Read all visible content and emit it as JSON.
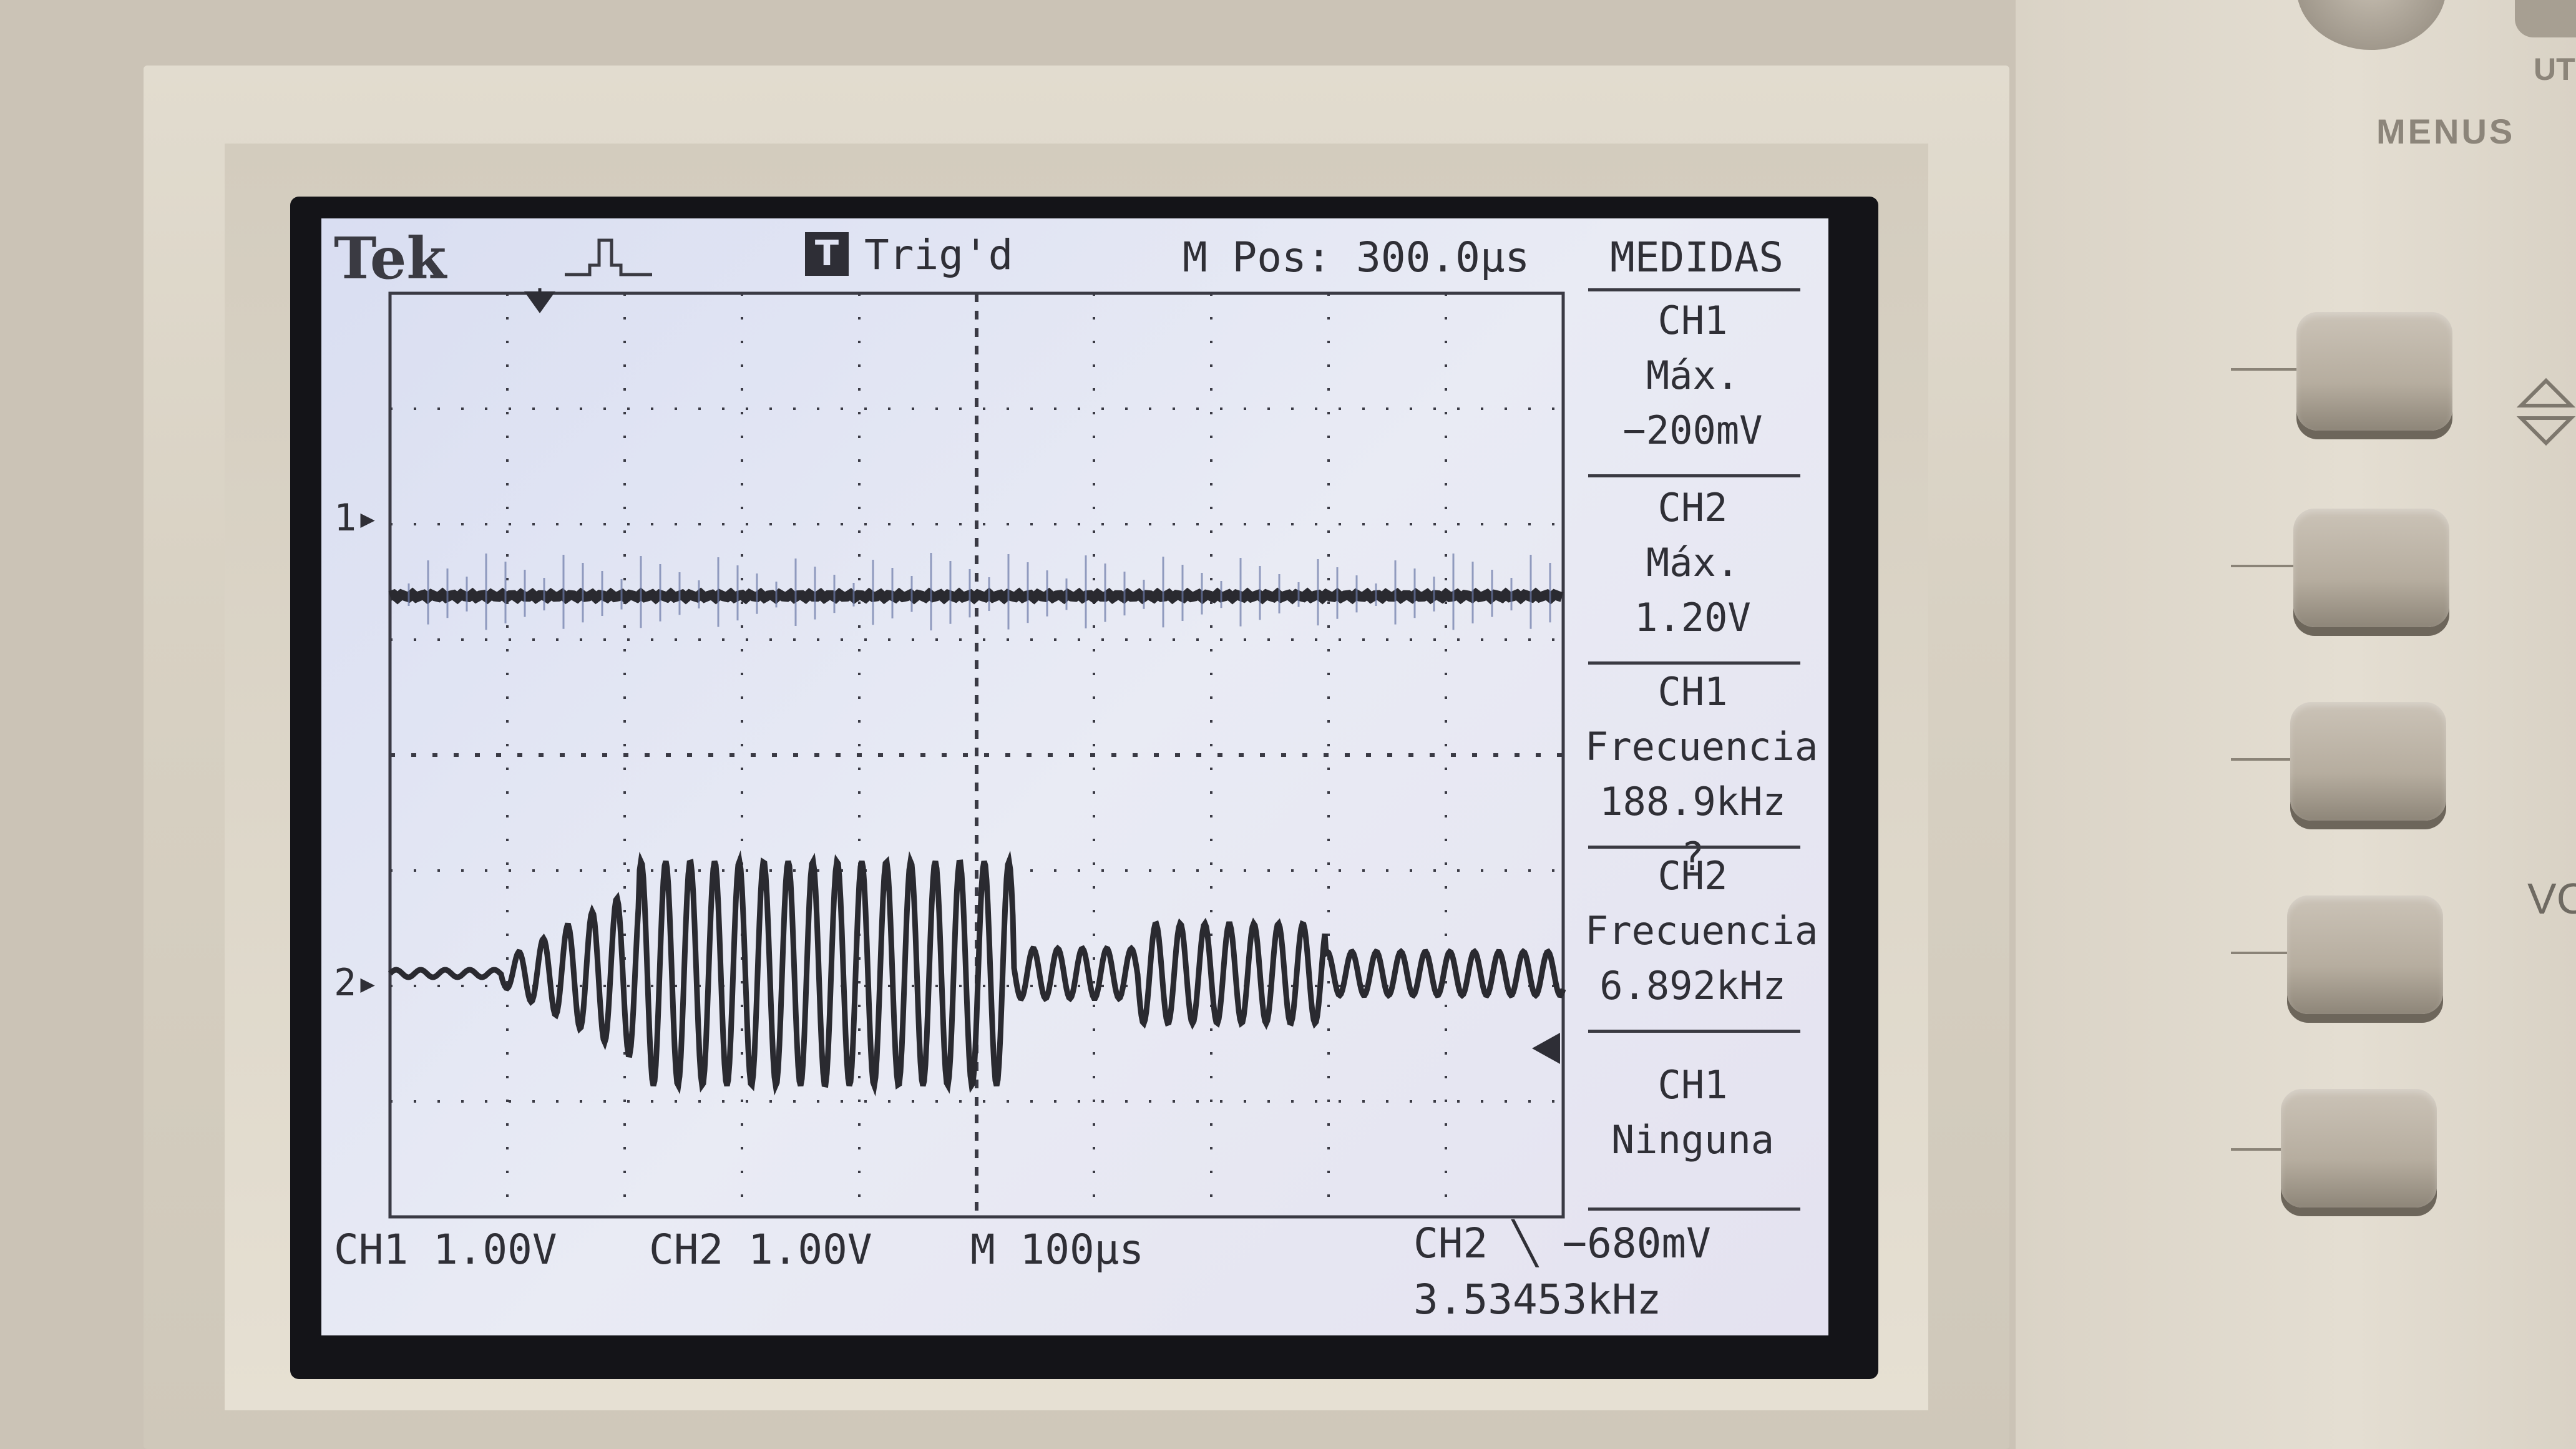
{
  "header": {
    "brand": "Tek",
    "trigger_status": "Trig'd",
    "trigger_badge": "T",
    "m_pos": "M Pos: 300.0µs"
  },
  "measurements": {
    "title": "MEDIDAS",
    "items": [
      {
        "channel": "CH1",
        "type": "Máx.",
        "value": "−200mV"
      },
      {
        "channel": "CH2",
        "type": "Máx.",
        "value": "1.20V"
      },
      {
        "channel": "CH1",
        "type": "Frecuencia",
        "value": "188.9kHz ?"
      },
      {
        "channel": "CH2",
        "type": "Frecuencia",
        "value": "6.892kHz"
      },
      {
        "channel": "CH1",
        "type": "Ninguna",
        "value": ""
      }
    ]
  },
  "footer": {
    "ch1_scale": "CH1  1.00V",
    "ch2_scale": "CH2  1.00V",
    "timebase": "M 100µs",
    "trigger": "CH2 ╲ −680mV",
    "trigger_freq": "3.53453kHz"
  },
  "channel_markers": {
    "ch1": "1▸",
    "ch2": "2▸"
  },
  "panel": {
    "menus_label": "MENUS",
    "ut_label": "UT",
    "vo_label": "VC"
  },
  "colors": {
    "screen_bg": "#dde1f2",
    "trace": "#2a2a30",
    "grid": "#3a3a44"
  },
  "icons": {
    "trigger_shape": "pulse-icon",
    "trigger_marker": "down-arrow-icon"
  }
}
